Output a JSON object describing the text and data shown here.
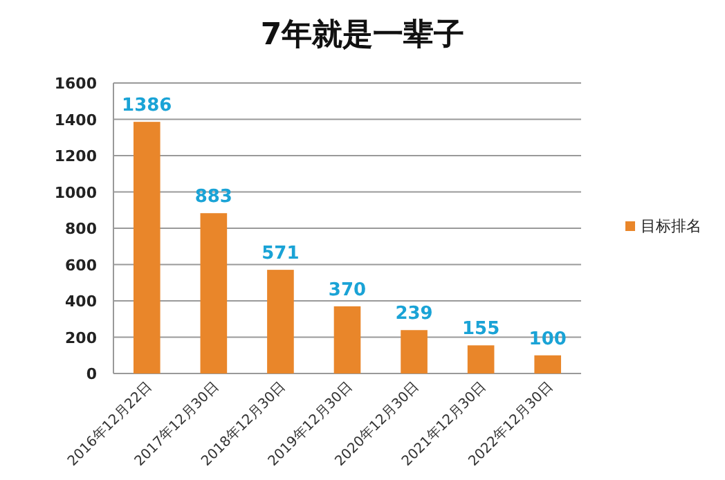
{
  "chart_data": {
    "type": "bar",
    "title": "7年就是一辈子",
    "categories": [
      "2016年12月22日",
      "2017年12月30日",
      "2018年12月30日",
      "2019年12月30日",
      "2020年12月30日",
      "2021年12月30日",
      "2022年12月30日"
    ],
    "series": [
      {
        "name": "目标排名",
        "color": "#e9862a",
        "values": [
          1386,
          883,
          571,
          370,
          239,
          155,
          100
        ]
      }
    ],
    "ylim": [
      0,
      1600
    ],
    "yticks": [
      0,
      200,
      400,
      600,
      800,
      1000,
      1200,
      1400,
      1600
    ],
    "grid": "y",
    "legend": "right",
    "data_labels": true
  }
}
